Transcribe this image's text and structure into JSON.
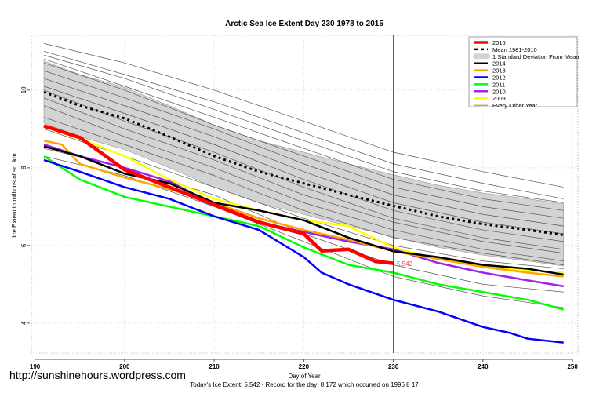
{
  "chart_data": {
    "type": "line",
    "title": "Arctic Sea Ice Extent Day 230 1978 to 2015",
    "xlabel": "Day of Year",
    "ylabel": "Ice Extent in millions of sq. km.",
    "subtitle": "Today's Ice Extent: 5.542  - Record for the day: 8.172 which occurred on 1996 8 17",
    "xlim": [
      189.6,
      250.6
    ],
    "ylim": [
      3.23,
      11.41
    ],
    "xticks": [
      190,
      200,
      210,
      220,
      230,
      240,
      250
    ],
    "yticks": [
      4,
      6,
      8,
      10
    ],
    "grid": true,
    "legend_position": "top-right",
    "current_day_marker": 230,
    "current_value_label": "5.542",
    "std_band": {
      "label": "1 Standard Deviation From Mean",
      "color": "#d3d3d3",
      "x": [
        191,
        195,
        200,
        205,
        210,
        215,
        220,
        225,
        230,
        235,
        240,
        245,
        249
      ],
      "upper": [
        10.75,
        10.4,
        10.07,
        9.6,
        9.1,
        8.7,
        8.4,
        8.1,
        7.82,
        7.55,
        7.35,
        7.2,
        7.07
      ],
      "lower": [
        9.15,
        8.8,
        8.47,
        8.0,
        7.5,
        7.1,
        6.8,
        6.5,
        6.22,
        5.95,
        5.75,
        5.6,
        5.47
      ]
    },
    "series": [
      {
        "name": "2015",
        "color": "#ff0000",
        "width": 4.5,
        "x": [
          191,
          195,
          200,
          205,
          210,
          215,
          220,
          222,
          225,
          228,
          230
        ],
        "values": [
          9.08,
          8.78,
          7.95,
          7.5,
          7.05,
          6.6,
          6.3,
          5.86,
          5.9,
          5.59,
          5.54
        ]
      },
      {
        "name": "Mean 1981-2010",
        "color": "#000000",
        "width": 3,
        "dash": "3,4",
        "x": [
          191,
          195,
          200,
          205,
          210,
          215,
          220,
          225,
          230,
          235,
          240,
          245,
          249
        ],
        "values": [
          9.95,
          9.6,
          9.27,
          8.8,
          8.3,
          7.9,
          7.6,
          7.3,
          7.02,
          6.75,
          6.55,
          6.4,
          6.27
        ]
      },
      {
        "name": "2014",
        "color": "#000000",
        "width": 2.5,
        "x": [
          191,
          195,
          200,
          205,
          210,
          215,
          220,
          225,
          230,
          235,
          240,
          245,
          249
        ],
        "values": [
          8.55,
          8.3,
          7.85,
          7.6,
          7.1,
          6.9,
          6.65,
          6.2,
          5.85,
          5.7,
          5.5,
          5.4,
          5.25
        ]
      },
      {
        "name": "2013",
        "color": "#ffa500",
        "width": 2.5,
        "x": [
          191,
          193,
          195,
          200,
          205,
          210,
          215,
          220,
          225,
          230,
          235,
          240,
          245,
          249
        ],
        "values": [
          8.7,
          8.6,
          8.1,
          7.75,
          7.45,
          7.1,
          6.7,
          6.4,
          6.15,
          5.85,
          5.65,
          5.45,
          5.3,
          5.2
        ]
      },
      {
        "name": "2012",
        "color": "#0000ff",
        "width": 2.5,
        "x": [
          191,
          195,
          200,
          205,
          210,
          215,
          220,
          222,
          225,
          230,
          235,
          240,
          243,
          245,
          249
        ],
        "values": [
          8.2,
          7.9,
          7.5,
          7.2,
          6.75,
          6.4,
          5.7,
          5.3,
          5.0,
          4.6,
          4.3,
          3.9,
          3.75,
          3.6,
          3.5
        ]
      },
      {
        "name": "2011",
        "color": "#00ff00",
        "width": 2.5,
        "x": [
          191,
          195,
          200,
          205,
          210,
          215,
          220,
          225,
          230,
          235,
          240,
          245,
          249
        ],
        "values": [
          8.3,
          7.7,
          7.25,
          7.0,
          6.75,
          6.5,
          5.95,
          5.5,
          5.3,
          5.0,
          4.8,
          4.6,
          4.35
        ]
      },
      {
        "name": "2010",
        "color": "#a020f0",
        "width": 2.5,
        "x": [
          191,
          195,
          200,
          205,
          210,
          215,
          220,
          225,
          230,
          235,
          240,
          245,
          249
        ],
        "values": [
          8.6,
          8.3,
          8.0,
          7.65,
          7.05,
          6.6,
          6.35,
          6.1,
          5.9,
          5.55,
          5.3,
          5.1,
          4.95
        ]
      },
      {
        "name": "2009",
        "color": "#ffff00",
        "width": 2.5,
        "x": [
          191,
          195,
          200,
          205,
          210,
          215,
          220,
          225,
          230,
          235,
          240,
          245,
          249
        ],
        "values": [
          9.05,
          8.75,
          8.3,
          7.7,
          7.2,
          6.9,
          6.65,
          6.5,
          5.95,
          5.65,
          5.45,
          5.35,
          5.3
        ]
      }
    ],
    "other_years": {
      "name": "Every Other Year",
      "color": "#555555",
      "x": [
        191,
        200,
        210,
        220,
        230,
        240,
        249
      ],
      "lines": [
        [
          11.2,
          10.7,
          10.0,
          9.2,
          8.4,
          7.9,
          7.5
        ],
        [
          11.0,
          10.4,
          9.7,
          8.9,
          8.1,
          7.6,
          7.2
        ],
        [
          10.9,
          10.3,
          9.5,
          8.7,
          7.9,
          7.4,
          7.1
        ],
        [
          10.8,
          10.1,
          9.3,
          8.5,
          7.7,
          7.2,
          6.9
        ],
        [
          10.7,
          10.0,
          9.1,
          8.3,
          7.5,
          7.0,
          6.7
        ],
        [
          10.5,
          9.8,
          9.0,
          8.1,
          7.3,
          6.8,
          6.5
        ],
        [
          10.3,
          9.6,
          8.8,
          7.9,
          7.1,
          6.6,
          6.3
        ],
        [
          10.1,
          9.4,
          8.6,
          7.7,
          6.9,
          6.4,
          6.1
        ],
        [
          10.0,
          9.2,
          8.4,
          7.5,
          6.7,
          6.2,
          5.9
        ],
        [
          9.8,
          9.0,
          8.2,
          7.3,
          6.6,
          6.1,
          5.8
        ],
        [
          9.6,
          8.8,
          8.0,
          7.1,
          6.4,
          5.9,
          5.6
        ],
        [
          9.3,
          8.6,
          7.8,
          6.9,
          6.2,
          5.8,
          5.5
        ],
        [
          9.0,
          8.3,
          7.5,
          6.7,
          6.0,
          5.6,
          5.4
        ],
        [
          8.5,
          8.0,
          7.3,
          6.3,
          5.5,
          5.0,
          4.8
        ],
        [
          8.3,
          7.8,
          7.0,
          6.1,
          5.2,
          4.7,
          4.4
        ]
      ]
    },
    "legend": [
      {
        "label": "2015",
        "color": "#ff0000",
        "style": "thick"
      },
      {
        "label": "Mean 1981-2010",
        "color": "#000000",
        "style": "dashed"
      },
      {
        "label": "1 Standard Deviation From Mean",
        "color": "#d3d3d3",
        "style": "band"
      },
      {
        "label": "2014",
        "color": "#000000",
        "style": "line"
      },
      {
        "label": "2013",
        "color": "#ffa500",
        "style": "line"
      },
      {
        "label": "2012",
        "color": "#0000ff",
        "style": "line"
      },
      {
        "label": "2011",
        "color": "#00ff00",
        "style": "line"
      },
      {
        "label": "2010",
        "color": "#a020f0",
        "style": "line"
      },
      {
        "label": "2009",
        "color": "#ffff00",
        "style": "line"
      },
      {
        "label": "Every Other Year",
        "color": "#555555",
        "style": "thin"
      }
    ]
  },
  "watermark_url": "http://sunshinehours.wordpress.com"
}
